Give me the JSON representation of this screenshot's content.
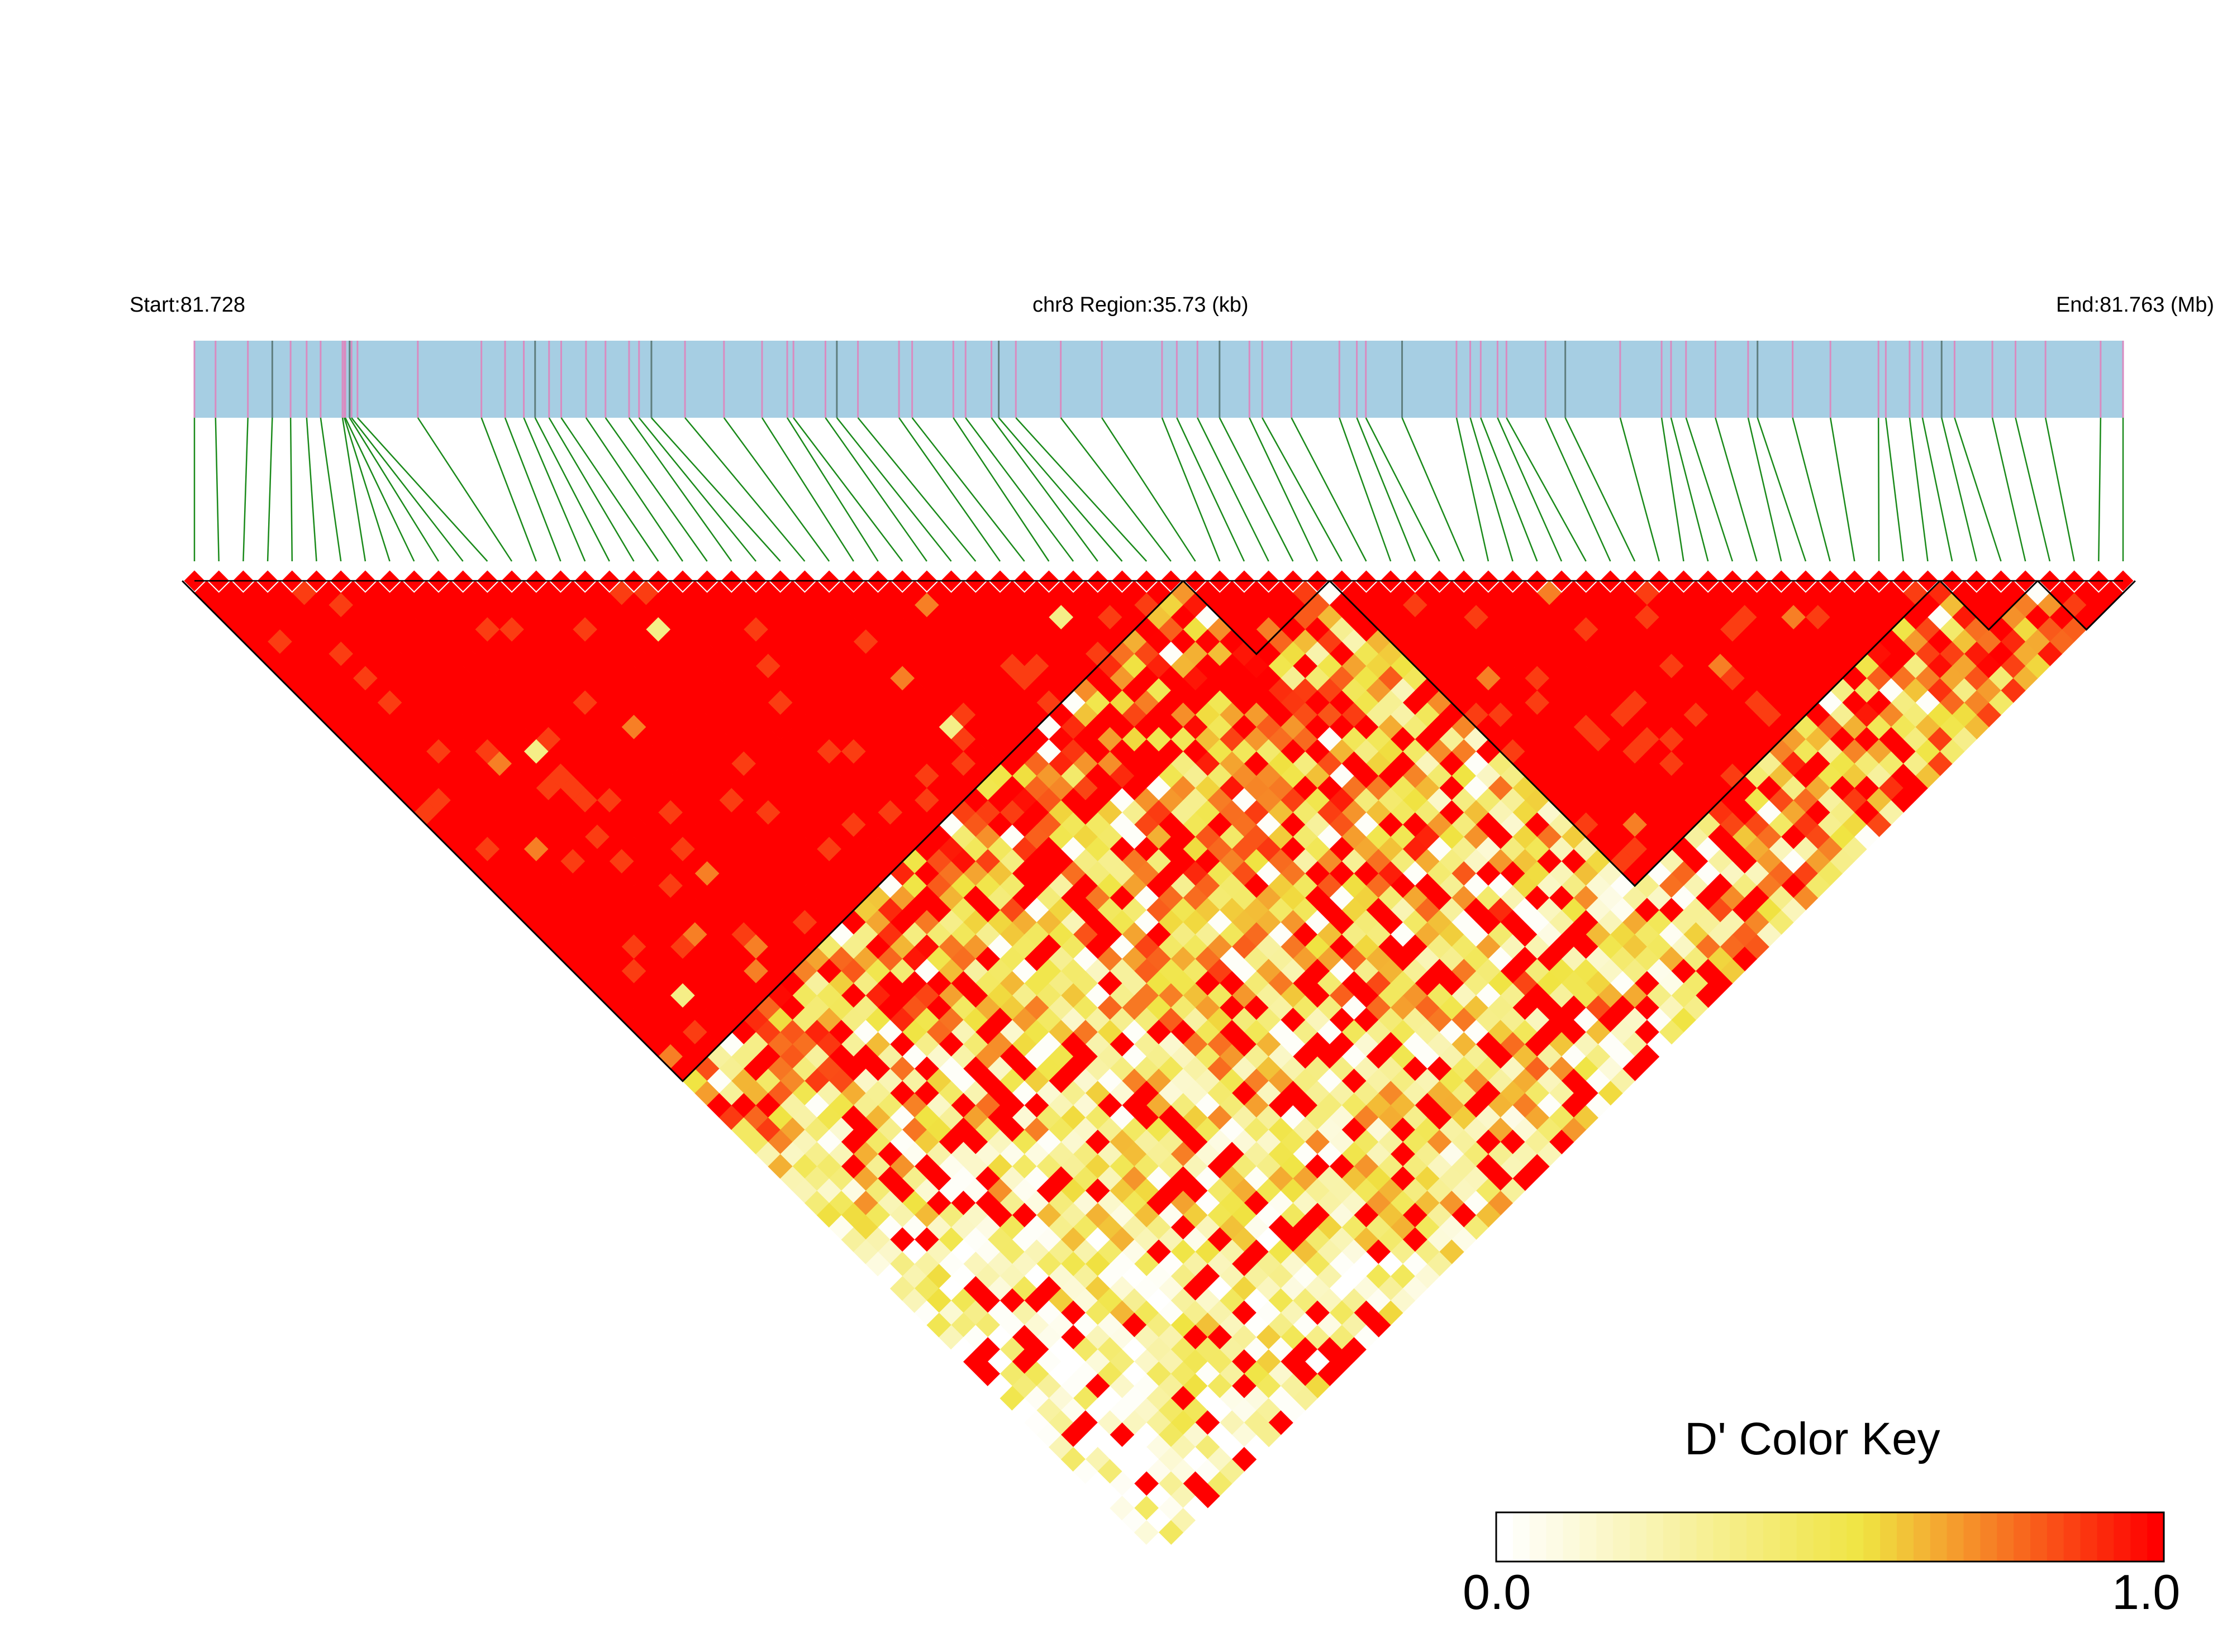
{
  "header": {
    "start_label": "Start:81.728",
    "region_label": "chr8 Region:35.73 (kb)",
    "end_label": "End:81.763 (Mb)"
  },
  "chart_data": {
    "type": "heatmap",
    "subtype": "LD triangle heatmap (D')",
    "chromosome": "chr8",
    "region_start_mb": 81.728,
    "region_end_mb": 81.763,
    "region_length_kb": 35.73,
    "snp_count": 80,
    "value_range": [
      0.0,
      1.0
    ],
    "ld_blocks": [
      {
        "first_snp": 1,
        "last_snp": 41
      },
      {
        "first_snp": 42,
        "last_snp": 47
      },
      {
        "first_snp": 48,
        "last_snp": 72
      },
      {
        "first_snp": 73,
        "last_snp": 76
      },
      {
        "first_snp": 77,
        "last_snp": 80
      }
    ],
    "low_dprime_regions": [
      {
        "snp_range": [
          40,
          80
        ],
        "approx_dprime": 0.35
      },
      {
        "snp_range": [
          48,
          80
        ],
        "approx_dprime": 0.45
      }
    ],
    "legend": {
      "title": "D' Color Key",
      "min_label": "0.0",
      "max_label": "1.0",
      "colors": [
        "#ffffff",
        "#f0e442",
        "#ff0000"
      ],
      "placement": "bottom-right"
    },
    "colors": {
      "region_bar": "#a6cee3",
      "snp_tick": "#d98bc0",
      "connector": "#1a8a1a",
      "high_ld": "#ff0000"
    }
  }
}
